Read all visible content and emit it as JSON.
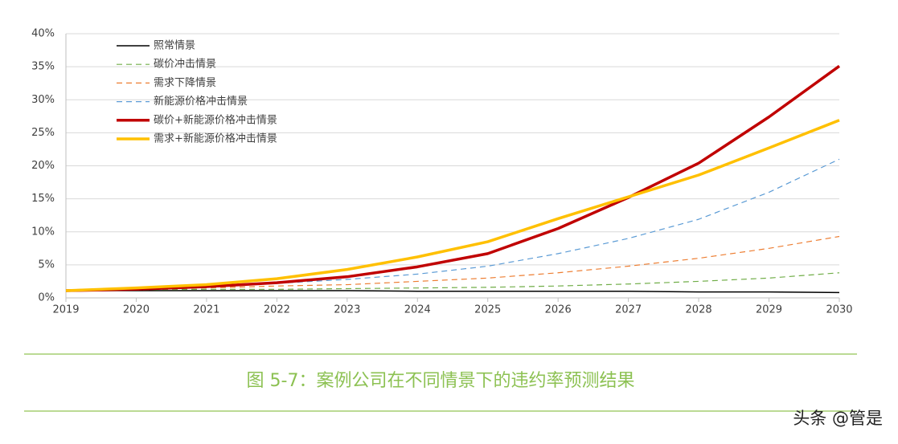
{
  "chart_data": {
    "type": "line",
    "x": [
      2019,
      2020,
      2021,
      2022,
      2023,
      2024,
      2025,
      2026,
      2027,
      2028,
      2029,
      2030
    ],
    "xlim": [
      2019,
      2030
    ],
    "xticks": [
      2019,
      2020,
      2021,
      2022,
      2023,
      2024,
      2025,
      2026,
      2027,
      2028,
      2029,
      2030
    ],
    "ylim": [
      0,
      40
    ],
    "yticks": [
      {
        "value": 0,
        "label": "0%"
      },
      {
        "value": 5,
        "label": "5%"
      },
      {
        "value": 10,
        "label": "10%"
      },
      {
        "value": 15,
        "label": "15%"
      },
      {
        "value": 20,
        "label": "20%"
      },
      {
        "value": 25,
        "label": "25%"
      },
      {
        "value": 30,
        "label": "30%"
      },
      {
        "value": 35,
        "label": "35%"
      },
      {
        "value": 40,
        "label": "40%"
      }
    ],
    "grid": true,
    "legend": "upper left",
    "series": [
      {
        "name": "照常情景",
        "color": "#000000",
        "style": "solid",
        "line_width": 1.5,
        "values": [
          1.1,
          1.1,
          1.1,
          1.1,
          1.1,
          1.0,
          1.0,
          1.0,
          1.0,
          0.9,
          0.9,
          0.8
        ]
      },
      {
        "name": "碳价冲击情景",
        "color": "#70ad47",
        "style": "dashed",
        "line_width": 1.2,
        "values": [
          1.1,
          1.2,
          1.3,
          1.3,
          1.4,
          1.5,
          1.6,
          1.8,
          2.1,
          2.5,
          3.0,
          3.8
        ]
      },
      {
        "name": "需求下降情景",
        "color": "#ed7d31",
        "style": "dashed",
        "line_width": 1.2,
        "values": [
          1.1,
          1.3,
          1.5,
          1.8,
          2.0,
          2.5,
          3.0,
          3.8,
          4.8,
          6.0,
          7.5,
          9.3
        ]
      },
      {
        "name": "新能源价格冲击情景",
        "color": "#5b9bd5",
        "style": "dashed",
        "line_width": 1.2,
        "values": [
          1.1,
          1.3,
          1.6,
          2.2,
          2.8,
          3.6,
          4.8,
          6.7,
          9.0,
          11.9,
          16.0,
          21.0
        ]
      },
      {
        "name": "碳价+新能源价格冲击情景",
        "color": "#c00000",
        "style": "solid",
        "line_width": 3.5,
        "values": [
          1.1,
          1.3,
          1.7,
          2.3,
          3.2,
          4.7,
          6.7,
          10.5,
          15.2,
          20.4,
          27.4,
          35.1
        ]
      },
      {
        "name": "需求+新能源价格冲击情景",
        "color": "#ffc000",
        "style": "solid",
        "line_width": 3.5,
        "values": [
          1.1,
          1.5,
          2.0,
          2.9,
          4.3,
          6.2,
          8.5,
          12.0,
          15.3,
          18.6,
          22.7,
          26.9
        ]
      }
    ]
  },
  "caption": "图 5-7：案例公司在不同情景下的违约率预测结果",
  "watermark": "头条 @管是"
}
